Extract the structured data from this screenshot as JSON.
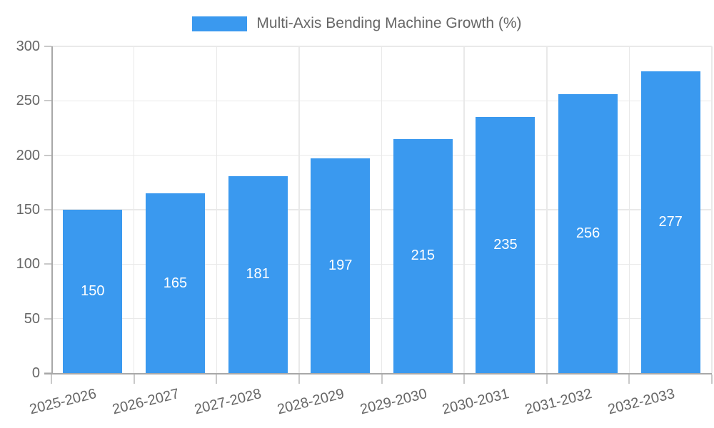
{
  "chart_data": {
    "type": "bar",
    "title": "Multi-Axis Bending Machine Growth (%)",
    "categories": [
      "2025-2026",
      "2026-2027",
      "2027-2028",
      "2028-2029",
      "2029-2030",
      "2030-2031",
      "2031-2032",
      "2032-2033"
    ],
    "values": [
      150,
      165,
      181,
      197,
      215,
      235,
      256,
      277
    ],
    "xlabel": "",
    "ylabel": "",
    "ylim": [
      0,
      300
    ],
    "yticks": [
      0,
      50,
      100,
      150,
      200,
      250,
      300
    ],
    "grid": true,
    "legend_position": "top",
    "bar_labels_inside": true,
    "colors": {
      "bar": "#3a99ef",
      "bar_label": "#ffffff",
      "axis_text": "#666666",
      "grid_line": "#e9e9e9",
      "axis_line": "#a8a8a8",
      "tick_line": "#c9c9c9",
      "background": "#ffffff"
    }
  }
}
